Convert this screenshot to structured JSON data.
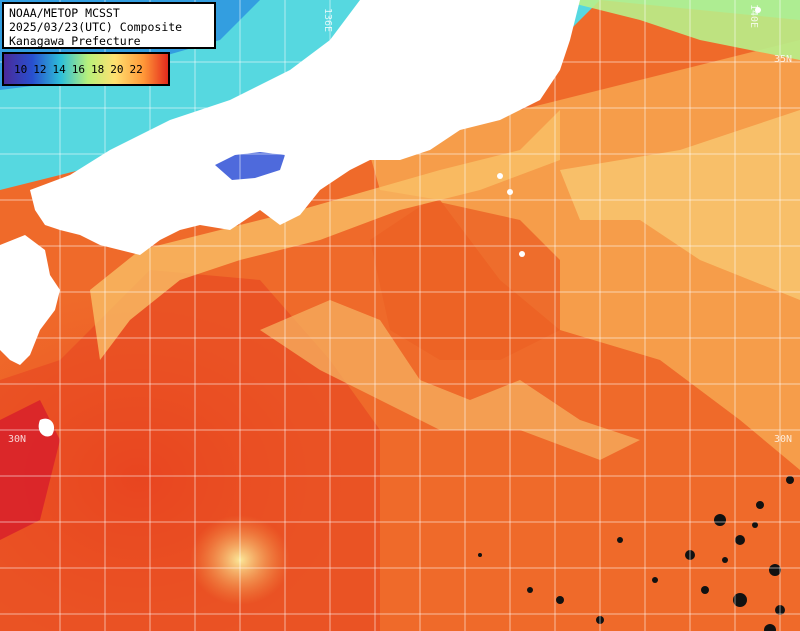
{
  "title": {
    "line1": "NOAA/METOP MCSST",
    "line2": "2025/03/23(UTC) Composite",
    "line3": "Kanagawa Prefecture"
  },
  "scale": {
    "labels": [
      "10",
      "12",
      "14",
      "16",
      "18",
      "20",
      "22"
    ],
    "colors": {
      "c10": "#4a2a9a",
      "c12": "#2850d0",
      "c14": "#2ec0d8",
      "c16": "#b8f07a",
      "c18": "#ffe070",
      "c20": "#ff9838",
      "c22": "#e01818"
    }
  },
  "grid_labels": {
    "lon_136": "136E",
    "lat_30_left": "30N",
    "lat_30_right": "30N",
    "lat_35_right": "35N",
    "lon_right": "140E"
  },
  "colors": {
    "land": "#ffffff",
    "warm_core": "#e23818",
    "kuroshio": "#f06828",
    "mid": "#f7a24a",
    "cool": "#fad070",
    "cold": "#5ce0d0"
  }
}
